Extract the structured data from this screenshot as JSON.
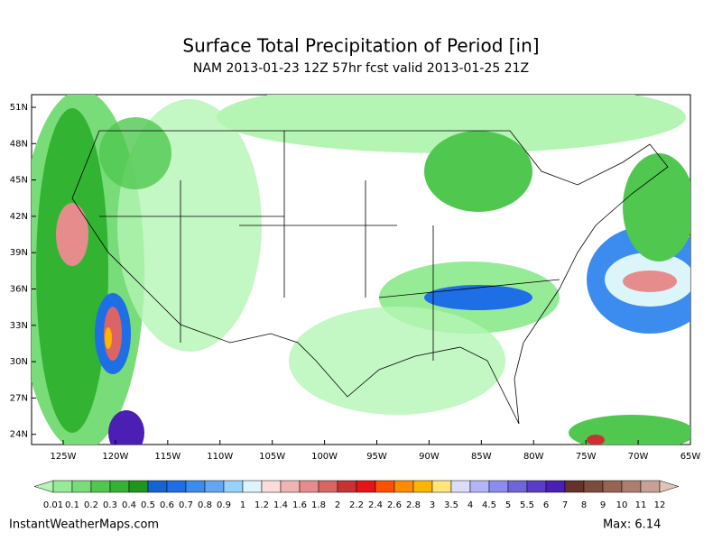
{
  "header": {
    "title": "Surface Total Precipitation of Period [in]",
    "subtitle": "NAM 2013-01-23 12Z 57hr fcst valid 2013-01-25 21Z"
  },
  "map": {
    "lat_labels": [
      "51N",
      "48N",
      "45N",
      "42N",
      "39N",
      "36N",
      "33N",
      "30N",
      "27N",
      "24N"
    ],
    "lon_labels": [
      "125W",
      "120W",
      "115W",
      "110W",
      "105W",
      "100W",
      "95W",
      "90W",
      "85W",
      "80W",
      "75W",
      "70W",
      "65W"
    ]
  },
  "colorbar": {
    "labels": [
      "0.01",
      "0.1",
      "0.2",
      "0.3",
      "0.4",
      "0.5",
      "0.6",
      "0.7",
      "0.8",
      "0.9",
      "1",
      "1.2",
      "1.4",
      "1.6",
      "1.8",
      "2",
      "2.2",
      "2.4",
      "2.6",
      "2.8",
      "3",
      "3.5",
      "4",
      "4.5",
      "5",
      "5.5",
      "6",
      "7",
      "8",
      "9",
      "10",
      "11",
      "12"
    ],
    "colors": [
      "#b4f5b4",
      "#96eb96",
      "#78dc78",
      "#50c850",
      "#32b432",
      "#1e961e",
      "#1464d2",
      "#1e6ee6",
      "#3c8cf0",
      "#64a5f5",
      "#96d2fa",
      "#dcf5fa",
      "#fadcdc",
      "#f0b4b4",
      "#e68c8c",
      "#dc6464",
      "#c83232",
      "#e61414",
      "#ff5000",
      "#ff8c00",
      "#ffb400",
      "#ffe678",
      "#dcdcff",
      "#b4b4fa",
      "#8c8cf0",
      "#6e64dc",
      "#5a3cc8",
      "#4b1eb4",
      "#643228",
      "#7d4b3c",
      "#966450",
      "#af7d6e",
      "#c8a096",
      "#e1c3b9"
    ]
  },
  "footer": {
    "source": "InstantWeatherMaps.com",
    "max": "Max:  6.14"
  }
}
